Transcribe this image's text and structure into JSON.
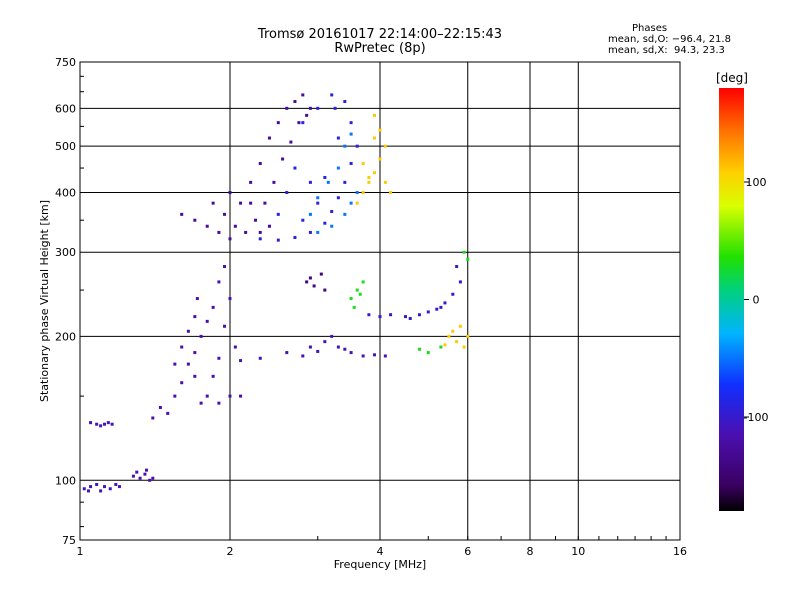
{
  "header": {
    "title_line1": "Tromsø 20161017 22:14:00–22:15:43",
    "title_line2": "RwPretec (8p)"
  },
  "stats": {
    "label": "Phases",
    "line_o": "mean, sd,O: −96.4, 21.8",
    "line_x": "mean, sd,X:  94.3, 23.3"
  },
  "chart_data": {
    "type": "scatter",
    "xlabel": "Frequency [MHz]",
    "ylabel": "Stationary phase Virtual Height [km]",
    "x_scale": "log",
    "y_scale": "log",
    "xlim": [
      1,
      16
    ],
    "ylim": [
      75,
      750
    ],
    "x_ticks": [
      1,
      2,
      4,
      6,
      8,
      10,
      16
    ],
    "x_gridlines": [
      2,
      4,
      6,
      8,
      10
    ],
    "y_ticks": [
      75,
      100,
      200,
      300,
      400,
      500,
      600,
      750
    ],
    "y_gridlines": [
      100,
      200,
      300,
      400,
      500,
      600
    ],
    "colorbar": {
      "label": "[deg]",
      "range": [
        -180,
        180
      ],
      "ticks": [
        100,
        0,
        -100
      ]
    },
    "series": [
      {
        "phase_deg": -110,
        "points": [
          [
            1.02,
            96
          ],
          [
            1.05,
            97
          ],
          [
            1.08,
            98
          ],
          [
            1.12,
            97
          ],
          [
            1.15,
            96
          ],
          [
            1.18,
            98
          ],
          [
            1.2,
            97
          ],
          [
            1.1,
            95
          ],
          [
            1.04,
            95
          ]
        ]
      },
      {
        "phase_deg": -115,
        "points": [
          [
            1.28,
            102
          ],
          [
            1.3,
            104
          ],
          [
            1.32,
            101
          ],
          [
            1.35,
            103
          ],
          [
            1.38,
            100
          ],
          [
            1.4,
            101
          ],
          [
            1.36,
            105
          ]
        ]
      },
      {
        "phase_deg": -110,
        "points": [
          [
            1.05,
            132
          ],
          [
            1.08,
            131
          ],
          [
            1.1,
            130
          ],
          [
            1.12,
            131
          ],
          [
            1.14,
            132
          ],
          [
            1.16,
            131
          ]
        ]
      },
      {
        "phase_deg": -115,
        "points": [
          [
            1.4,
            135
          ],
          [
            1.45,
            142
          ],
          [
            1.5,
            138
          ],
          [
            1.55,
            150
          ],
          [
            1.6,
            160
          ],
          [
            1.65,
            175
          ],
          [
            1.7,
            185
          ],
          [
            1.75,
            200
          ],
          [
            1.8,
            215
          ],
          [
            1.85,
            230
          ],
          [
            1.9,
            260
          ],
          [
            1.95,
            280
          ],
          [
            1.55,
            175
          ],
          [
            1.6,
            190
          ],
          [
            1.7,
            165
          ],
          [
            1.8,
            150
          ],
          [
            1.9,
            145
          ],
          [
            2.0,
            150
          ],
          [
            1.75,
            145
          ],
          [
            1.85,
            165
          ],
          [
            1.95,
            210
          ],
          [
            1.65,
            205
          ],
          [
            1.7,
            220
          ],
          [
            1.9,
            180
          ],
          [
            2.0,
            240
          ],
          [
            2.05,
            190
          ],
          [
            2.1,
            150
          ],
          [
            1.72,
            240
          ]
        ]
      },
      {
        "phase_deg": -110,
        "points": [
          [
            2.1,
            178
          ],
          [
            2.3,
            180
          ],
          [
            2.6,
            185
          ],
          [
            2.9,
            190
          ],
          [
            3.1,
            195
          ],
          [
            3.3,
            190
          ],
          [
            3.5,
            185
          ],
          [
            3.7,
            182
          ],
          [
            3.9,
            183
          ],
          [
            4.1,
            182
          ],
          [
            3.2,
            200
          ],
          [
            3.4,
            188
          ],
          [
            2.8,
            182
          ],
          [
            3.0,
            186
          ]
        ]
      },
      {
        "phase_deg": -125,
        "points": [
          [
            1.6,
            360
          ],
          [
            1.7,
            350
          ],
          [
            1.8,
            340
          ],
          [
            1.9,
            330
          ],
          [
            2.0,
            320
          ],
          [
            2.05,
            340
          ],
          [
            2.1,
            380
          ],
          [
            2.2,
            420
          ],
          [
            2.3,
            460
          ],
          [
            2.4,
            520
          ],
          [
            2.5,
            560
          ],
          [
            2.6,
            600
          ],
          [
            2.7,
            620
          ],
          [
            2.8,
            640
          ],
          [
            2.9,
            600
          ],
          [
            1.95,
            360
          ],
          [
            2.15,
            330
          ],
          [
            2.0,
            400
          ],
          [
            1.85,
            380
          ],
          [
            2.25,
            350
          ],
          [
            2.35,
            380
          ],
          [
            2.45,
            420
          ],
          [
            2.55,
            470
          ],
          [
            2.65,
            510
          ],
          [
            2.75,
            560
          ],
          [
            2.85,
            580
          ],
          [
            2.3,
            330
          ],
          [
            2.4,
            340
          ],
          [
            2.2,
            380
          ]
        ]
      },
      {
        "phase_deg": -90,
        "points": [
          [
            2.3,
            320
          ],
          [
            2.5,
            318
          ],
          [
            2.7,
            322
          ],
          [
            2.9,
            330
          ],
          [
            3.1,
            345
          ],
          [
            3.2,
            365
          ],
          [
            3.3,
            390
          ],
          [
            3.4,
            420
          ],
          [
            3.5,
            460
          ],
          [
            3.6,
            500
          ],
          [
            3.5,
            560
          ],
          [
            3.4,
            620
          ],
          [
            3.2,
            640
          ],
          [
            3.0,
            600
          ],
          [
            2.8,
            560
          ],
          [
            3.1,
            430
          ],
          [
            2.9,
            420
          ],
          [
            2.6,
            400
          ],
          [
            2.7,
            450
          ],
          [
            3.0,
            380
          ],
          [
            3.3,
            520
          ],
          [
            2.8,
            350
          ],
          [
            2.5,
            360
          ],
          [
            3.25,
            600
          ]
        ]
      },
      {
        "phase_deg": -50,
        "points": [
          [
            3.0,
            330
          ],
          [
            3.2,
            340
          ],
          [
            3.4,
            360
          ],
          [
            3.5,
            380
          ],
          [
            3.6,
            400
          ],
          [
            3.3,
            450
          ],
          [
            3.4,
            500
          ],
          [
            3.5,
            530
          ],
          [
            3.0,
            390
          ],
          [
            3.15,
            420
          ],
          [
            2.9,
            360
          ]
        ]
      },
      {
        "phase_deg": -100,
        "points": [
          [
            4.5,
            220
          ],
          [
            4.8,
            222
          ],
          [
            5.0,
            225
          ],
          [
            5.2,
            228
          ],
          [
            5.4,
            235
          ],
          [
            5.6,
            245
          ],
          [
            5.8,
            260
          ],
          [
            4.2,
            222
          ],
          [
            4.0,
            220
          ],
          [
            3.8,
            222
          ],
          [
            5.7,
            280
          ],
          [
            4.6,
            218
          ],
          [
            5.3,
            230
          ]
        ]
      },
      {
        "phase_deg": 110,
        "points": [
          [
            3.6,
            380
          ],
          [
            3.7,
            400
          ],
          [
            3.8,
            420
          ],
          [
            3.9,
            440
          ],
          [
            4.0,
            470
          ],
          [
            4.1,
            500
          ],
          [
            4.0,
            540
          ],
          [
            3.9,
            580
          ],
          [
            3.8,
            430
          ],
          [
            4.1,
            420
          ],
          [
            4.2,
            400
          ],
          [
            3.7,
            460
          ],
          [
            3.9,
            520
          ],
          [
            5.5,
            200
          ],
          [
            5.7,
            195
          ],
          [
            5.9,
            190
          ],
          [
            6.0,
            200
          ],
          [
            5.6,
            205
          ],
          [
            5.8,
            210
          ],
          [
            5.4,
            192
          ]
        ]
      },
      {
        "phase_deg": 30,
        "points": [
          [
            3.5,
            240
          ],
          [
            3.6,
            250
          ],
          [
            3.7,
            260
          ],
          [
            3.55,
            230
          ],
          [
            3.65,
            245
          ],
          [
            5.0,
            185
          ],
          [
            5.3,
            190
          ],
          [
            4.8,
            188
          ],
          [
            5.9,
            300
          ],
          [
            6.0,
            290
          ]
        ]
      },
      {
        "phase_deg": -140,
        "points": [
          [
            2.85,
            260
          ],
          [
            2.95,
            255
          ],
          [
            3.05,
            270
          ],
          [
            3.1,
            250
          ],
          [
            2.9,
            265
          ]
        ]
      }
    ]
  }
}
